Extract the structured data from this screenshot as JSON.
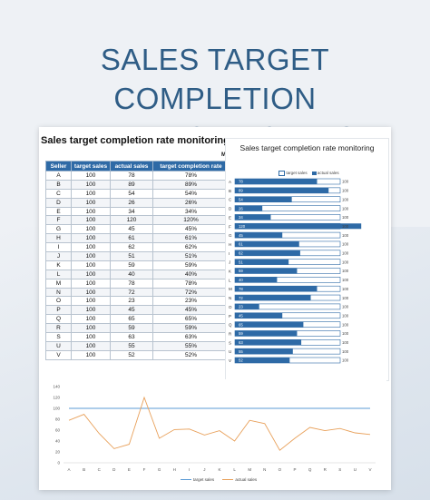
{
  "poster": {
    "title_line1": "SALES TARGET COMPLETION",
    "title_line2": "RATE MONITORING"
  },
  "sheet": {
    "title": "Sales target completion rate monitoring",
    "maker": "Maker: XXXX",
    "columns": [
      "Seller",
      "target sales",
      "actual sales",
      "target completion rate"
    ],
    "rows": [
      [
        "A",
        "100",
        "78",
        "78%"
      ],
      [
        "B",
        "100",
        "89",
        "89%"
      ],
      [
        "C",
        "100",
        "54",
        "54%"
      ],
      [
        "D",
        "100",
        "26",
        "26%"
      ],
      [
        "E",
        "100",
        "34",
        "34%"
      ],
      [
        "F",
        "100",
        "120",
        "120%"
      ],
      [
        "G",
        "100",
        "45",
        "45%"
      ],
      [
        "H",
        "100",
        "61",
        "61%"
      ],
      [
        "I",
        "100",
        "62",
        "62%"
      ],
      [
        "J",
        "100",
        "51",
        "51%"
      ],
      [
        "K",
        "100",
        "59",
        "59%"
      ],
      [
        "L",
        "100",
        "40",
        "40%"
      ],
      [
        "M",
        "100",
        "78",
        "78%"
      ],
      [
        "N",
        "100",
        "72",
        "72%"
      ],
      [
        "O",
        "100",
        "23",
        "23%"
      ],
      [
        "P",
        "100",
        "45",
        "45%"
      ],
      [
        "Q",
        "100",
        "65",
        "65%"
      ],
      [
        "R",
        "100",
        "59",
        "59%"
      ],
      [
        "S",
        "100",
        "63",
        "63%"
      ],
      [
        "U",
        "100",
        "55",
        "55%"
      ],
      [
        "V",
        "100",
        "52",
        "52%"
      ]
    ]
  },
  "chart_data": [
    {
      "type": "bar",
      "orientation": "horizontal",
      "title": "Sales target completion rate monitoring",
      "categories": [
        "A",
        "B",
        "C",
        "D",
        "E",
        "F",
        "G",
        "H",
        "I",
        "J",
        "K",
        "L",
        "M",
        "N",
        "O",
        "P",
        "Q",
        "R",
        "S",
        "U",
        "V"
      ],
      "series": [
        {
          "name": "target sales",
          "values": [
            100,
            100,
            100,
            100,
            100,
            100,
            100,
            100,
            100,
            100,
            100,
            100,
            100,
            100,
            100,
            100,
            100,
            100,
            100,
            100,
            100
          ]
        },
        {
          "name": "actual sales",
          "values": [
            78,
            89,
            54,
            26,
            34,
            120,
            45,
            61,
            62,
            51,
            59,
            40,
            78,
            72,
            23,
            45,
            65,
            59,
            63,
            55,
            52
          ]
        }
      ],
      "legend": "top",
      "colors": {
        "target": "#2e6aa6",
        "actual": "#2e6aa6"
      }
    },
    {
      "type": "line",
      "categories": [
        "A",
        "B",
        "C",
        "D",
        "E",
        "F",
        "G",
        "H",
        "I",
        "J",
        "K",
        "L",
        "M",
        "N",
        "O",
        "P",
        "Q",
        "R",
        "S",
        "U",
        "V"
      ],
      "series": [
        {
          "name": "target sales",
          "values": [
            100,
            100,
            100,
            100,
            100,
            100,
            100,
            100,
            100,
            100,
            100,
            100,
            100,
            100,
            100,
            100,
            100,
            100,
            100,
            100,
            100
          ]
        },
        {
          "name": "actual sales",
          "values": [
            78,
            89,
            54,
            26,
            34,
            120,
            45,
            61,
            62,
            51,
            59,
            40,
            78,
            72,
            23,
            45,
            65,
            59,
            63,
            55,
            52
          ]
        }
      ],
      "ylim": [
        0,
        140
      ],
      "yticks": [
        "0",
        "20",
        "40",
        "60",
        "80",
        "100",
        "120",
        "140"
      ],
      "legend": "bottom",
      "grid": false,
      "colors": {
        "target": "#5b9bd5",
        "actual": "#e8a05a"
      }
    }
  ]
}
